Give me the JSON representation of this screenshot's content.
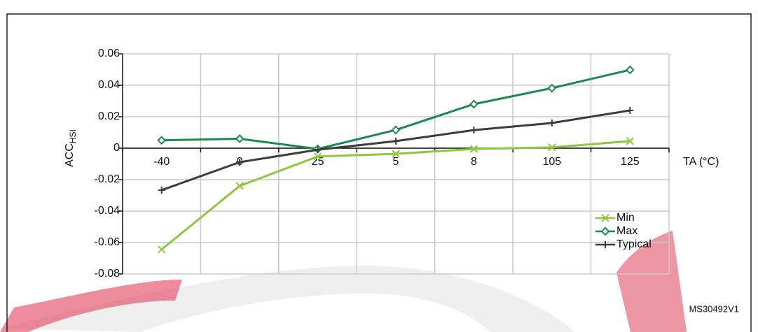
{
  "chart_data": {
    "type": "line",
    "y_label": "ACC",
    "y_label_sub": "HSI",
    "x_label": "TA (°C)",
    "code": "MS30492V1",
    "categories": [
      "-40",
      "0",
      "25",
      "5",
      "8",
      "105",
      "125"
    ],
    "series": [
      {
        "name": "Min",
        "color": "#8dc63f",
        "marker": "x",
        "values": [
          -0.0644,
          -0.024,
          -0.0053,
          -0.0036,
          -0.0005,
          0.0005,
          0.0045
        ]
      },
      {
        "name": "Max",
        "color": "#1b8a4c",
        "marker": "diamond",
        "values": [
          0.005,
          0.006,
          -0.0005,
          0.0116,
          0.028,
          0.0382,
          0.0498
        ]
      },
      {
        "name": "Typical",
        "color": "#3c3c3c",
        "marker": "plus",
        "values": [
          -0.0267,
          -0.0089,
          -0.001,
          0.0045,
          0.0115,
          0.016,
          0.024
        ]
      }
    ],
    "ylim": [
      -0.08,
      0.06
    ],
    "yticks": [
      {
        "value": -0.08,
        "label": "-0.08"
      },
      {
        "value": -0.06,
        "label": "-0.06"
      },
      {
        "value": -0.04,
        "label": "-0.04"
      },
      {
        "value": -0.02,
        "label": "-0.02"
      },
      0,
      {
        "value": 0.02,
        "label": "0.02"
      },
      {
        "value": 0.04,
        "label": "0.04"
      },
      {
        "value": 0.06,
        "label": "0.06"
      }
    ],
    "grid": true,
    "legend": "lower right"
  }
}
